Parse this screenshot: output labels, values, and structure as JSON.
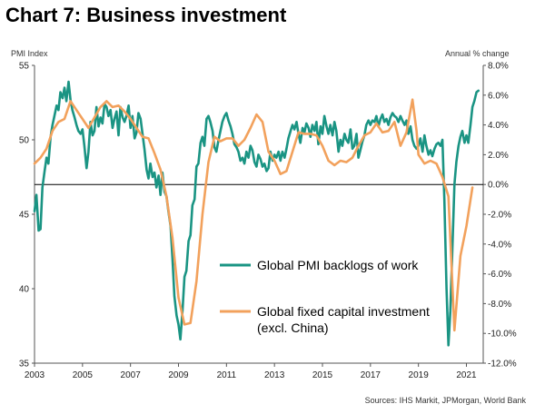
{
  "title": "Chart 7: Business investment",
  "left_axis_label": "PMI  Index",
  "right_axis_label": "Annual  % change",
  "source": "Sources: IHS Markit, JPMorgan, World Bank",
  "colors": {
    "pmi": "#1a9483",
    "capex": "#f2a15c",
    "zero_line": "#000000"
  },
  "chart_data": {
    "type": "line",
    "title": "Chart 7: Business investment",
    "x_ticks": [
      "2003",
      "2005",
      "2007",
      "2009",
      "2011",
      "2013",
      "2015",
      "2017",
      "2019",
      "2021"
    ],
    "xlim": [
      2003.0,
      2021.7
    ],
    "left_ylim": [
      35,
      55
    ],
    "left_ticks": [
      "35",
      "40",
      "45",
      "50",
      "55"
    ],
    "right_ylim": [
      -12,
      8
    ],
    "right_ticks": [
      "-12.0%",
      "-10.0%",
      "-8.0%",
      "-6.0%",
      "-4.0%",
      "-2.0%",
      "0.0%",
      "2.0%",
      "4.0%",
      "6.0%",
      "8.0%"
    ],
    "legend": [
      "Global PMI backlogs of work",
      "Global fixed capital investment",
      "(excl. China)"
    ],
    "series": [
      {
        "name": "Global PMI backlogs of work",
        "axis": "left",
        "points": [
          [
            2003.0,
            45.2
          ],
          [
            2003.08,
            46.3
          ],
          [
            2003.17,
            43.9
          ],
          [
            2003.25,
            44.0
          ],
          [
            2003.33,
            46.8
          ],
          [
            2003.42,
            47.9
          ],
          [
            2003.5,
            48.8
          ],
          [
            2003.58,
            48.4
          ],
          [
            2003.67,
            50.2
          ],
          [
            2003.75,
            51.0
          ],
          [
            2003.83,
            51.6
          ],
          [
            2003.92,
            52.3
          ],
          [
            2004.0,
            52.0
          ],
          [
            2004.08,
            53.2
          ],
          [
            2004.17,
            52.8
          ],
          [
            2004.25,
            53.5
          ],
          [
            2004.33,
            52.6
          ],
          [
            2004.42,
            53.9
          ],
          [
            2004.5,
            52.7
          ],
          [
            2004.58,
            52.0
          ],
          [
            2004.67,
            51.5
          ],
          [
            2004.75,
            51.0
          ],
          [
            2004.83,
            50.6
          ],
          [
            2004.92,
            50.4
          ],
          [
            2005.0,
            50.7
          ],
          [
            2005.08,
            49.6
          ],
          [
            2005.17,
            48.1
          ],
          [
            2005.25,
            49.2
          ],
          [
            2005.33,
            51.2
          ],
          [
            2005.42,
            50.3
          ],
          [
            2005.5,
            50.6
          ],
          [
            2005.58,
            52.2
          ],
          [
            2005.67,
            50.9
          ],
          [
            2005.75,
            51.5
          ],
          [
            2005.83,
            51.1
          ],
          [
            2005.92,
            52.4
          ],
          [
            2006.0,
            52.2
          ],
          [
            2006.08,
            51.6
          ],
          [
            2006.17,
            52.0
          ],
          [
            2006.25,
            50.8
          ],
          [
            2006.33,
            51.4
          ],
          [
            2006.42,
            51.9
          ],
          [
            2006.5,
            50.3
          ],
          [
            2006.58,
            52.2
          ],
          [
            2006.67,
            51.5
          ],
          [
            2006.75,
            51.2
          ],
          [
            2006.83,
            51.6
          ],
          [
            2006.92,
            52.3
          ],
          [
            2007.0,
            50.8
          ],
          [
            2007.08,
            51.6
          ],
          [
            2007.17,
            50.1
          ],
          [
            2007.25,
            50.5
          ],
          [
            2007.33,
            51.8
          ],
          [
            2007.42,
            51.4
          ],
          [
            2007.5,
            50.4
          ],
          [
            2007.58,
            49.4
          ],
          [
            2007.67,
            48.0
          ],
          [
            2007.75,
            47.4
          ],
          [
            2007.83,
            48.4
          ],
          [
            2007.92,
            47.5
          ],
          [
            2008.0,
            47.8
          ],
          [
            2008.08,
            46.8
          ],
          [
            2008.17,
            47.6
          ],
          [
            2008.25,
            46.3
          ],
          [
            2008.33,
            47.8
          ],
          [
            2008.42,
            46.5
          ],
          [
            2008.5,
            46.2
          ],
          [
            2008.58,
            45.2
          ],
          [
            2008.67,
            44.2
          ],
          [
            2008.75,
            42.0
          ],
          [
            2008.83,
            39.5
          ],
          [
            2008.92,
            38.2
          ],
          [
            2009.0,
            37.6
          ],
          [
            2009.08,
            36.6
          ],
          [
            2009.17,
            38.6
          ],
          [
            2009.25,
            40.8
          ],
          [
            2009.33,
            41.2
          ],
          [
            2009.42,
            43.2
          ],
          [
            2009.5,
            43.6
          ],
          [
            2009.58,
            45.6
          ],
          [
            2009.67,
            46.0
          ],
          [
            2009.75,
            48.2
          ],
          [
            2009.83,
            48.4
          ],
          [
            2009.92,
            49.8
          ],
          [
            2010.0,
            50.2
          ],
          [
            2010.08,
            49.6
          ],
          [
            2010.17,
            51.4
          ],
          [
            2010.25,
            51.6
          ],
          [
            2010.33,
            51.2
          ],
          [
            2010.42,
            50.6
          ],
          [
            2010.5,
            49.5
          ],
          [
            2010.58,
            49.2
          ],
          [
            2010.67,
            50.0
          ],
          [
            2010.75,
            50.6
          ],
          [
            2010.83,
            51.2
          ],
          [
            2010.92,
            51.6
          ],
          [
            2011.0,
            51.8
          ],
          [
            2011.08,
            51.3
          ],
          [
            2011.17,
            50.9
          ],
          [
            2011.25,
            50.4
          ],
          [
            2011.33,
            49.7
          ],
          [
            2011.42,
            49.5
          ],
          [
            2011.5,
            49.2
          ],
          [
            2011.58,
            48.6
          ],
          [
            2011.67,
            48.8
          ],
          [
            2011.75,
            48.4
          ],
          [
            2011.83,
            49.2
          ],
          [
            2011.92,
            48.8
          ],
          [
            2012.0,
            49.6
          ],
          [
            2012.08,
            49.3
          ],
          [
            2012.17,
            48.5
          ],
          [
            2012.25,
            48.2
          ],
          [
            2012.33,
            49.0
          ],
          [
            2012.42,
            48.7
          ],
          [
            2012.5,
            48.2
          ],
          [
            2012.58,
            48.4
          ],
          [
            2012.67,
            47.9
          ],
          [
            2012.75,
            48.1
          ],
          [
            2012.83,
            49.2
          ],
          [
            2012.92,
            48.6
          ],
          [
            2013.0,
            49.0
          ],
          [
            2013.08,
            48.8
          ],
          [
            2013.17,
            49.2
          ],
          [
            2013.25,
            48.6
          ],
          [
            2013.33,
            49.2
          ],
          [
            2013.42,
            48.8
          ],
          [
            2013.5,
            49.4
          ],
          [
            2013.58,
            50.1
          ],
          [
            2013.67,
            50.6
          ],
          [
            2013.75,
            51.0
          ],
          [
            2013.83,
            50.7
          ],
          [
            2013.92,
            51.2
          ],
          [
            2014.0,
            50.4
          ],
          [
            2014.08,
            49.8
          ],
          [
            2014.17,
            50.8
          ],
          [
            2014.25,
            50.5
          ],
          [
            2014.33,
            51.1
          ],
          [
            2014.42,
            50.8
          ],
          [
            2014.5,
            50.2
          ],
          [
            2014.58,
            51.0
          ],
          [
            2014.67,
            50.6
          ],
          [
            2014.75,
            51.2
          ],
          [
            2014.83,
            49.7
          ],
          [
            2014.92,
            50.9
          ],
          [
            2015.0,
            50.4
          ],
          [
            2015.08,
            51.6
          ],
          [
            2015.17,
            50.9
          ],
          [
            2015.25,
            50.4
          ],
          [
            2015.33,
            51.0
          ],
          [
            2015.42,
            50.3
          ],
          [
            2015.5,
            51.2
          ],
          [
            2015.58,
            50.6
          ],
          [
            2015.67,
            49.2
          ],
          [
            2015.75,
            50.0
          ],
          [
            2015.83,
            49.6
          ],
          [
            2015.92,
            50.4
          ],
          [
            2016.0,
            50.0
          ],
          [
            2016.08,
            49.8
          ],
          [
            2016.17,
            50.7
          ],
          [
            2016.25,
            49.4
          ],
          [
            2016.33,
            49.6
          ],
          [
            2016.42,
            50.4
          ],
          [
            2016.5,
            48.8
          ],
          [
            2016.58,
            49.3
          ],
          [
            2016.67,
            49.9
          ],
          [
            2016.75,
            50.3
          ],
          [
            2016.83,
            51.0
          ],
          [
            2016.92,
            51.3
          ],
          [
            2017.0,
            51.0
          ],
          [
            2017.08,
            51.3
          ],
          [
            2017.17,
            51.2
          ],
          [
            2017.25,
            51.6
          ],
          [
            2017.33,
            50.9
          ],
          [
            2017.42,
            51.4
          ],
          [
            2017.5,
            51.7
          ],
          [
            2017.58,
            51.2
          ],
          [
            2017.67,
            51.4
          ],
          [
            2017.75,
            51.0
          ],
          [
            2017.83,
            51.5
          ],
          [
            2017.92,
            51.8
          ],
          [
            2018.0,
            51.6
          ],
          [
            2018.08,
            51.5
          ],
          [
            2018.17,
            51.2
          ],
          [
            2018.25,
            51.6
          ],
          [
            2018.33,
            51.3
          ],
          [
            2018.42,
            51.0
          ],
          [
            2018.5,
            51.3
          ],
          [
            2018.58,
            50.4
          ],
          [
            2018.67,
            50.9
          ],
          [
            2018.75,
            50.0
          ],
          [
            2018.83,
            49.6
          ],
          [
            2018.92,
            49.4
          ],
          [
            2019.0,
            49.6
          ],
          [
            2019.08,
            50.1
          ],
          [
            2019.17,
            49.2
          ],
          [
            2019.25,
            50.3
          ],
          [
            2019.33,
            49.6
          ],
          [
            2019.42,
            49.0
          ],
          [
            2019.5,
            49.3
          ],
          [
            2019.58,
            48.9
          ],
          [
            2019.67,
            49.4
          ],
          [
            2019.75,
            49.7
          ],
          [
            2019.83,
            49.8
          ],
          [
            2019.92,
            49.6
          ],
          [
            2020.0,
            50.0
          ],
          [
            2020.08,
            46.0
          ],
          [
            2020.17,
            40.0
          ],
          [
            2020.25,
            36.2
          ],
          [
            2020.33,
            38.5
          ],
          [
            2020.42,
            43.0
          ],
          [
            2020.5,
            47.0
          ],
          [
            2020.58,
            48.5
          ],
          [
            2020.67,
            49.6
          ],
          [
            2020.75,
            50.2
          ],
          [
            2020.83,
            50.6
          ],
          [
            2020.92,
            49.8
          ],
          [
            2021.0,
            50.3
          ],
          [
            2021.08,
            49.8
          ],
          [
            2021.17,
            51.0
          ],
          [
            2021.25,
            52.2
          ],
          [
            2021.33,
            52.6
          ],
          [
            2021.42,
            53.2
          ],
          [
            2021.5,
            53.3
          ]
        ]
      },
      {
        "name": "Global fixed capital investment (excl. China)",
        "axis": "right",
        "points": [
          [
            2003.0,
            1.4
          ],
          [
            2003.25,
            1.8
          ],
          [
            2003.5,
            2.4
          ],
          [
            2003.75,
            3.6
          ],
          [
            2004.0,
            4.2
          ],
          [
            2004.25,
            4.4
          ],
          [
            2004.5,
            5.6
          ],
          [
            2004.75,
            5.0
          ],
          [
            2005.0,
            4.4
          ],
          [
            2005.25,
            3.8
          ],
          [
            2005.5,
            4.5
          ],
          [
            2005.75,
            5.2
          ],
          [
            2006.0,
            5.6
          ],
          [
            2006.25,
            5.2
          ],
          [
            2006.5,
            5.3
          ],
          [
            2006.75,
            4.9
          ],
          [
            2007.0,
            4.4
          ],
          [
            2007.25,
            3.8
          ],
          [
            2007.5,
            3.2
          ],
          [
            2007.75,
            3.1
          ],
          [
            2008.0,
            2.1
          ],
          [
            2008.25,
            1.0
          ],
          [
            2008.5,
            -0.8
          ],
          [
            2008.75,
            -3.6
          ],
          [
            2009.0,
            -7.6
          ],
          [
            2009.25,
            -9.4
          ],
          [
            2009.5,
            -9.3
          ],
          [
            2009.75,
            -6.5
          ],
          [
            2010.0,
            -2.0
          ],
          [
            2010.25,
            1.5
          ],
          [
            2010.5,
            3.2
          ],
          [
            2010.75,
            2.9
          ],
          [
            2011.0,
            3.1
          ],
          [
            2011.25,
            3.1
          ],
          [
            2011.5,
            2.6
          ],
          [
            2011.75,
            3.0
          ],
          [
            2012.0,
            3.8
          ],
          [
            2012.25,
            4.7
          ],
          [
            2012.5,
            4.2
          ],
          [
            2012.75,
            2.2
          ],
          [
            2013.0,
            1.6
          ],
          [
            2013.25,
            0.7
          ],
          [
            2013.5,
            0.9
          ],
          [
            2013.75,
            2.2
          ],
          [
            2014.0,
            3.5
          ],
          [
            2014.25,
            3.4
          ],
          [
            2014.5,
            3.4
          ],
          [
            2014.75,
            3.3
          ],
          [
            2015.0,
            2.6
          ],
          [
            2015.25,
            1.6
          ],
          [
            2015.5,
            1.3
          ],
          [
            2015.75,
            1.6
          ],
          [
            2016.0,
            1.5
          ],
          [
            2016.25,
            1.8
          ],
          [
            2016.5,
            2.6
          ],
          [
            2016.75,
            3.3
          ],
          [
            2017.0,
            3.5
          ],
          [
            2017.25,
            4.1
          ],
          [
            2017.5,
            3.5
          ],
          [
            2017.75,
            3.6
          ],
          [
            2018.0,
            4.2
          ],
          [
            2018.25,
            2.6
          ],
          [
            2018.5,
            3.5
          ],
          [
            2018.75,
            5.7
          ],
          [
            2018.92,
            3.6
          ],
          [
            2019.0,
            2.0
          ],
          [
            2019.25,
            1.4
          ],
          [
            2019.5,
            1.6
          ],
          [
            2019.75,
            1.4
          ],
          [
            2020.0,
            0.5
          ],
          [
            2020.25,
            -0.8
          ],
          [
            2020.5,
            -9.8
          ],
          [
            2020.75,
            -4.8
          ],
          [
            2021.0,
            -2.8
          ],
          [
            2021.25,
            -0.2
          ]
        ]
      }
    ]
  }
}
